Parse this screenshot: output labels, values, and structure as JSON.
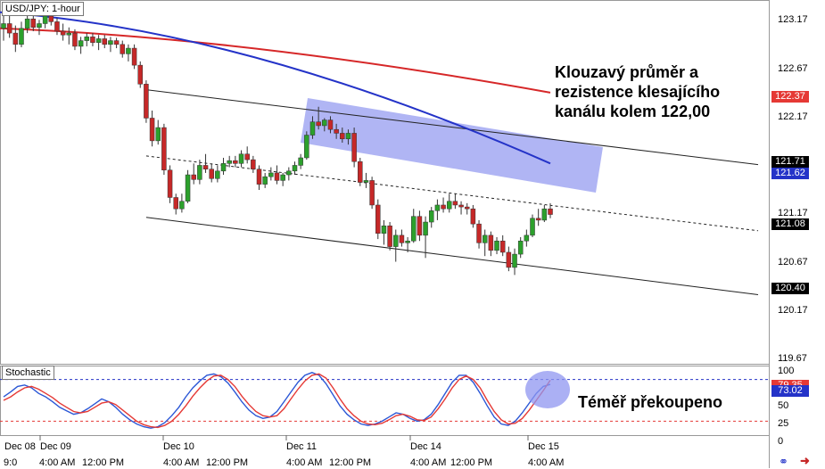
{
  "title": "USD/JPY: 1-hour",
  "indicator_label": "Stochastic",
  "annotations": {
    "resistance": [
      "Klouzavý průměr a",
      "rezistence klesajícího",
      "kanálu kolem 122,00"
    ],
    "stochastic": "Téměř překoupeno"
  },
  "colors": {
    "up_candle": "#2ca02c",
    "down_candle": "#c62828",
    "sma_fast": "#2433c8",
    "sma_slow": "#d62728",
    "stoch_k": "#2b57d6",
    "stoch_d": "#e53935",
    "highlight_box": "#8f96f0",
    "highlight_circle": "#8f96f0"
  },
  "price_axis": {
    "ticks": [
      "123.17",
      "122.67",
      "122.17",
      "121.71",
      "121.17",
      "120.67",
      "120.17",
      "119.67"
    ],
    "badges": [
      {
        "value": "122.37",
        "bg": "#e53935",
        "fg": "#ffffff"
      },
      {
        "value": "121.71",
        "bg": "#000000",
        "fg": "#ffffff"
      },
      {
        "value": "121.62",
        "bg": "#2433c8",
        "fg": "#ffffff"
      },
      {
        "value": "121.08",
        "bg": "#000000",
        "fg": "#ffffff"
      },
      {
        "value": "120.40",
        "bg": "#000000",
        "fg": "#ffffff"
      }
    ]
  },
  "stoch_axis": {
    "ticks": [
      "100",
      "75",
      "50",
      "25",
      "0"
    ],
    "badges": [
      {
        "value": "79.35",
        "bg": "#e53935",
        "fg": "#ffffff"
      },
      {
        "value": "73.02",
        "bg": "#2433c8",
        "fg": "#ffffff"
      }
    ]
  },
  "time_axis": {
    "top": [
      "Dec 08",
      "Dec 09",
      "Dec 10",
      "Dec 11",
      "Dec 14",
      "Dec 15"
    ],
    "bottom": [
      "9:0",
      "4:00 AM",
      "12:00 PM",
      "4:00 AM",
      "12:00 PM",
      "4:00 AM",
      "12:00 PM",
      "4:00 AM",
      "12:00 PM",
      "4:00 AM"
    ]
  },
  "chart_data": [
    {
      "type": "candlestick",
      "title": "USD/JPY: 1-hour",
      "ylim": [
        119.5,
        123.35
      ],
      "candles": [
        [
          123.05,
          123.22,
          122.92,
          123.1
        ],
        [
          123.1,
          123.18,
          122.95,
          123.0
        ],
        [
          123.0,
          123.08,
          122.8,
          122.88
        ],
        [
          122.88,
          123.12,
          122.85,
          123.05
        ],
        [
          123.05,
          123.2,
          123.0,
          123.15
        ],
        [
          123.15,
          123.22,
          123.02,
          123.06
        ],
        [
          123.06,
          123.14,
          122.98,
          123.1
        ],
        [
          123.1,
          123.24,
          123.05,
          123.18
        ],
        [
          123.18,
          123.24,
          123.08,
          123.12
        ],
        [
          123.12,
          123.16,
          122.98,
          123.02
        ],
        [
          123.02,
          123.1,
          122.92,
          122.98
        ],
        [
          122.98,
          123.06,
          122.88,
          123.0
        ],
        [
          123.0,
          123.04,
          122.82,
          122.86
        ],
        [
          122.86,
          122.96,
          122.78,
          122.92
        ],
        [
          122.92,
          123.0,
          122.86,
          122.96
        ],
        [
          122.96,
          123.0,
          122.86,
          122.9
        ],
        [
          122.9,
          122.98,
          122.82,
          122.94
        ],
        [
          122.94,
          122.98,
          122.84,
          122.88
        ],
        [
          122.88,
          122.96,
          122.8,
          122.92
        ],
        [
          122.92,
          122.95,
          122.84,
          122.88
        ],
        [
          122.88,
          122.92,
          122.74,
          122.78
        ],
        [
          122.78,
          122.88,
          122.7,
          122.84
        ],
        [
          122.84,
          122.88,
          122.62,
          122.66
        ],
        [
          122.66,
          122.7,
          122.42,
          122.46
        ],
        [
          122.46,
          122.5,
          122.05,
          122.1
        ],
        [
          122.1,
          122.18,
          121.8,
          121.86
        ],
        [
          121.86,
          122.08,
          121.82,
          122.0
        ],
        [
          122.0,
          122.04,
          121.5,
          121.55
        ],
        [
          121.55,
          121.6,
          121.2,
          121.26
        ],
        [
          121.26,
          121.3,
          121.08,
          121.14
        ],
        [
          121.14,
          121.3,
          121.1,
          121.22
        ],
        [
          121.22,
          121.55,
          121.2,
          121.5
        ],
        [
          121.5,
          121.62,
          121.4,
          121.45
        ],
        [
          121.45,
          121.66,
          121.4,
          121.6
        ],
        [
          121.6,
          121.72,
          121.52,
          121.56
        ],
        [
          121.56,
          121.62,
          121.42,
          121.46
        ],
        [
          121.46,
          121.6,
          121.42,
          121.54
        ],
        [
          121.54,
          121.68,
          121.5,
          121.62
        ],
        [
          121.62,
          121.7,
          121.58,
          121.65
        ],
        [
          121.65,
          121.7,
          121.58,
          121.62
        ],
        [
          121.62,
          121.76,
          121.58,
          121.72
        ],
        [
          121.72,
          121.8,
          121.62,
          121.66
        ],
        [
          121.66,
          121.7,
          121.52,
          121.56
        ],
        [
          121.56,
          121.6,
          121.34,
          121.4
        ],
        [
          121.4,
          121.52,
          121.36,
          121.48
        ],
        [
          121.48,
          121.58,
          121.44,
          121.52
        ],
        [
          121.52,
          121.6,
          121.4,
          121.44
        ],
        [
          121.44,
          121.52,
          121.38,
          121.5
        ],
        [
          121.5,
          121.58,
          121.44,
          121.54
        ],
        [
          121.54,
          121.64,
          121.5,
          121.6
        ],
        [
          121.6,
          121.72,
          121.56,
          121.68
        ],
        [
          121.68,
          121.96,
          121.66,
          121.92
        ],
        [
          121.92,
          122.12,
          121.88,
          122.06
        ],
        [
          122.06,
          122.22,
          121.98,
          122.02
        ],
        [
          122.02,
          122.1,
          121.96,
          122.08
        ],
        [
          122.08,
          122.12,
          121.94,
          121.98
        ],
        [
          121.98,
          122.04,
          121.88,
          121.94
        ],
        [
          121.94,
          122.0,
          121.84,
          121.88
        ],
        [
          121.88,
          121.98,
          121.82,
          121.94
        ],
        [
          121.94,
          122.0,
          121.58,
          121.64
        ],
        [
          121.64,
          121.68,
          121.38,
          121.42
        ],
        [
          121.42,
          121.52,
          121.36,
          121.44
        ],
        [
          121.44,
          121.48,
          121.14,
          121.18
        ],
        [
          121.18,
          121.24,
          120.82,
          120.88
        ],
        [
          120.88,
          121.02,
          120.76,
          120.96
        ],
        [
          120.96,
          121.0,
          120.7,
          120.74
        ],
        [
          120.74,
          120.92,
          120.58,
          120.86
        ],
        [
          120.86,
          120.92,
          120.74,
          120.78
        ],
        [
          120.78,
          120.84,
          120.68,
          120.8
        ],
        [
          120.8,
          121.14,
          120.78,
          121.06
        ],
        [
          121.06,
          121.12,
          120.8,
          120.86
        ],
        [
          120.86,
          121.06,
          120.62,
          121.0
        ],
        [
          121.0,
          121.16,
          120.94,
          121.12
        ],
        [
          121.12,
          121.24,
          121.02,
          121.18
        ],
        [
          121.18,
          121.26,
          121.1,
          121.14
        ],
        [
          121.14,
          121.3,
          121.1,
          121.22
        ],
        [
          121.22,
          121.3,
          121.14,
          121.18
        ],
        [
          121.18,
          121.22,
          121.08,
          121.16
        ],
        [
          121.16,
          121.2,
          121.08,
          121.14
        ],
        [
          121.14,
          121.18,
          120.94,
          120.98
        ],
        [
          120.98,
          121.02,
          120.72,
          120.78
        ],
        [
          120.78,
          120.92,
          120.64,
          120.86
        ],
        [
          120.86,
          120.9,
          120.64,
          120.7
        ],
        [
          120.7,
          120.84,
          120.66,
          120.8
        ],
        [
          120.8,
          120.86,
          120.64,
          120.68
        ],
        [
          120.68,
          120.74,
          120.48,
          120.52
        ],
        [
          120.52,
          120.72,
          120.44,
          120.66
        ],
        [
          120.66,
          120.84,
          120.62,
          120.8
        ],
        [
          120.8,
          120.92,
          120.74,
          120.86
        ],
        [
          120.86,
          121.08,
          120.84,
          121.04
        ],
        [
          121.04,
          121.14,
          120.96,
          121.02
        ],
        [
          121.02,
          121.18,
          121.0,
          121.14
        ],
        [
          121.14,
          121.2,
          121.04,
          121.08
        ]
      ],
      "moving_averages": [
        {
          "color": "sma_fast",
          "start": 123.22,
          "end": 121.62,
          "shape": "declining, accelerating"
        },
        {
          "color": "sma_slow",
          "start": 123.05,
          "end": 122.37,
          "shape": "gently declining"
        }
      ],
      "channel": {
        "upper": [
          [
            24,
            122.4
          ],
          [
            141,
            121.5
          ]
        ],
        "middle": [
          [
            24,
            121.7
          ],
          [
            141,
            120.8
          ]
        ],
        "lower": [
          [
            24,
            121.05
          ],
          [
            141,
            120.12
          ]
        ]
      }
    },
    {
      "type": "line",
      "title": "Stochastic",
      "ylim": [
        0,
        100
      ],
      "levels": [
        80,
        20
      ],
      "series": [
        {
          "color": "stoch_k",
          "values": [
            55,
            62,
            70,
            72,
            68,
            60,
            55,
            48,
            40,
            35,
            30,
            32,
            38,
            45,
            52,
            48,
            40,
            30,
            22,
            16,
            12,
            10,
            12,
            18,
            28,
            40,
            55,
            68,
            78,
            86,
            88,
            84,
            75,
            62,
            48,
            36,
            28,
            24,
            26,
            34,
            48,
            62,
            76,
            86,
            90,
            86,
            74,
            58,
            42,
            30,
            22,
            16,
            14,
            16,
            20,
            26,
            32,
            30,
            24,
            20,
            22,
            30,
            44,
            60,
            76,
            86,
            86,
            76,
            60,
            42,
            26,
            16,
            14,
            20,
            32,
            46,
            60,
            70,
            73
          ]
        },
        {
          "color": "stoch_d",
          "values": [
            50,
            55,
            62,
            68,
            70,
            66,
            60,
            54,
            46,
            40,
            34,
            32,
            34,
            40,
            46,
            48,
            44,
            36,
            28,
            20,
            15,
            12,
            11,
            14,
            20,
            30,
            42,
            56,
            68,
            78,
            85,
            86,
            80,
            70,
            56,
            44,
            34,
            28,
            26,
            28,
            38,
            52,
            66,
            78,
            86,
            88,
            82,
            68,
            52,
            38,
            28,
            20,
            16,
            15,
            17,
            22,
            28,
            30,
            27,
            22,
            21,
            26,
            38,
            52,
            68,
            80,
            85,
            80,
            68,
            50,
            34,
            22,
            16,
            17,
            24,
            36,
            50,
            64,
            79
          ]
        }
      ]
    }
  ]
}
